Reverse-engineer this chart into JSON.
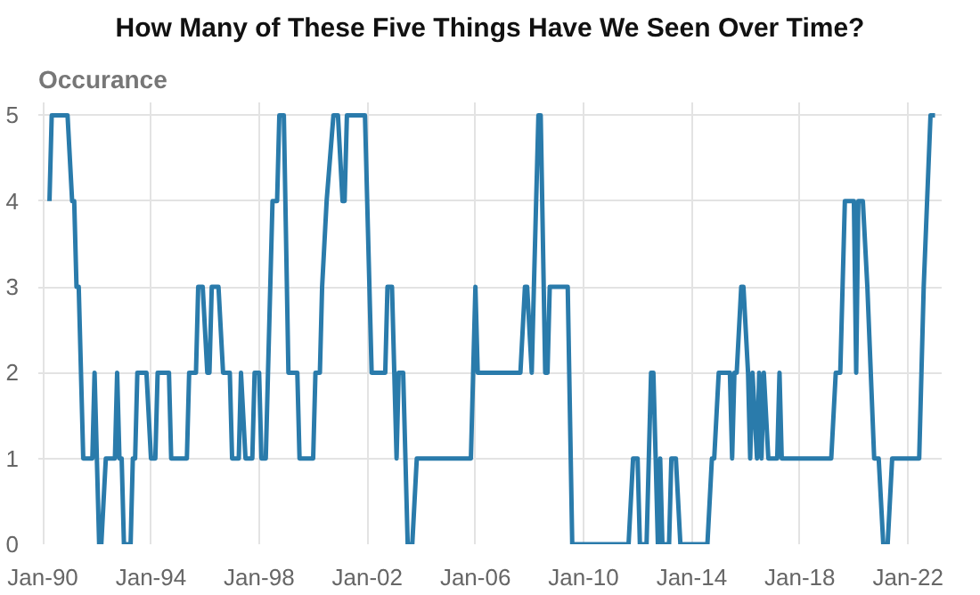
{
  "chart_data": {
    "type": "line",
    "title": "How Many of These Five Things Have We Seen Over Time?",
    "ylabel": "Occurance",
    "xlim": [
      "1989-11",
      "2023-04"
    ],
    "ylim": [
      0,
      5.15
    ],
    "xticks": [
      {
        "value": "1990-01",
        "label": "Jan-90"
      },
      {
        "value": "1994-01",
        "label": "Jan-94"
      },
      {
        "value": "1998-01",
        "label": "Jan-98"
      },
      {
        "value": "2002-01",
        "label": "Jan-02"
      },
      {
        "value": "2006-01",
        "label": "Jan-06"
      },
      {
        "value": "2010-01",
        "label": "Jan-10"
      },
      {
        "value": "2014-01",
        "label": "Jan-14"
      },
      {
        "value": "2018-01",
        "label": "Jan-18"
      },
      {
        "value": "2022-01",
        "label": "Jan-22"
      }
    ],
    "yticks": [
      0,
      1,
      2,
      3,
      4,
      5
    ],
    "grid": true,
    "marker": "none",
    "line_style": "solid",
    "series": [
      {
        "color": "#2a7bab",
        "x": [
          "1990-04",
          "1990-05",
          "1990-12",
          "1991-02",
          "1991-03",
          "1991-04",
          "1991-05",
          "1991-07",
          "1991-11",
          "1991-12",
          "1992-02",
          "1992-03",
          "1992-05",
          "1992-09",
          "1992-10",
          "1992-11",
          "1992-12",
          "1993-01",
          "1993-04",
          "1993-05",
          "1993-06",
          "1993-07",
          "1993-11",
          "1994-01",
          "1994-03",
          "1994-04",
          "1994-09",
          "1994-10",
          "1995-05",
          "1995-06",
          "1995-09",
          "1995-10",
          "1995-12",
          "1996-02",
          "1996-03",
          "1996-04",
          "1996-07",
          "1996-09",
          "1996-12",
          "1997-01",
          "1997-04",
          "1997-05",
          "1997-07",
          "1997-10",
          "1997-11",
          "1998-01",
          "1998-02",
          "1998-04",
          "1998-05",
          "1998-07",
          "1998-09",
          "1998-10",
          "1998-12",
          "1999-02",
          "1999-06",
          "1999-07",
          "2000-01",
          "2000-02",
          "2000-04",
          "2000-05",
          "2000-07",
          "2000-10",
          "2000-12",
          "2001-02",
          "2001-03",
          "2001-04",
          "2001-12",
          "2002-03",
          "2002-09",
          "2002-10",
          "2002-12",
          "2003-01",
          "2003-02",
          "2003-03",
          "2003-05",
          "2003-07",
          "2003-09",
          "2003-11",
          "2005-11",
          "2006-01",
          "2006-02",
          "2007-09",
          "2007-11",
          "2007-12",
          "2008-02",
          "2008-03",
          "2008-05",
          "2008-06",
          "2008-08",
          "2008-09",
          "2008-10",
          "2009-06",
          "2009-08",
          "2011-09",
          "2011-11",
          "2012-01",
          "2012-02",
          "2012-05",
          "2012-07",
          "2012-08",
          "2012-09",
          "2012-10",
          "2012-11",
          "2012-12",
          "2013-03",
          "2013-04",
          "2013-06",
          "2013-08",
          "2014-08",
          "2014-10",
          "2014-11",
          "2015-01",
          "2015-06",
          "2015-07",
          "2015-08",
          "2015-09",
          "2015-11",
          "2015-12",
          "2016-02",
          "2016-03",
          "2016-04",
          "2016-06",
          "2016-07",
          "2016-08",
          "2016-09",
          "2016-11",
          "2017-03",
          "2017-04",
          "2017-05",
          "2019-03",
          "2019-05",
          "2019-07",
          "2019-09",
          "2020-01",
          "2020-02",
          "2020-03",
          "2020-05",
          "2020-07",
          "2020-10",
          "2020-12",
          "2021-02",
          "2021-04",
          "2021-06",
          "2022-06",
          "2022-08",
          "2022-11",
          "2023-01"
        ],
        "values": [
          4,
          5,
          5,
          4,
          4,
          3,
          3,
          1,
          1,
          2,
          0,
          0,
          1,
          1,
          2,
          1,
          1,
          0,
          0,
          1,
          1,
          2,
          2,
          1,
          1,
          2,
          2,
          1,
          1,
          2,
          2,
          3,
          3,
          2,
          2,
          3,
          3,
          2,
          2,
          1,
          1,
          2,
          1,
          1,
          2,
          2,
          1,
          1,
          2,
          4,
          4,
          5,
          5,
          2,
          2,
          1,
          1,
          2,
          2,
          3,
          4,
          5,
          5,
          4,
          4,
          5,
          5,
          2,
          2,
          3,
          3,
          2,
          1,
          2,
          2,
          0,
          0,
          1,
          1,
          3,
          2,
          2,
          3,
          3,
          2,
          3,
          5,
          5,
          2,
          2,
          3,
          3,
          0,
          0,
          1,
          1,
          0,
          0,
          2,
          2,
          1,
          0,
          1,
          0,
          0,
          1,
          1,
          0,
          0,
          1,
          1,
          2,
          2,
          1,
          2,
          2,
          3,
          3,
          2,
          1,
          2,
          1,
          2,
          1,
          2,
          1,
          1,
          2,
          1,
          1,
          2,
          2,
          4,
          4,
          2,
          4,
          4,
          3,
          1,
          1,
          0,
          0,
          1,
          1,
          3,
          5,
          5
        ]
      }
    ]
  }
}
